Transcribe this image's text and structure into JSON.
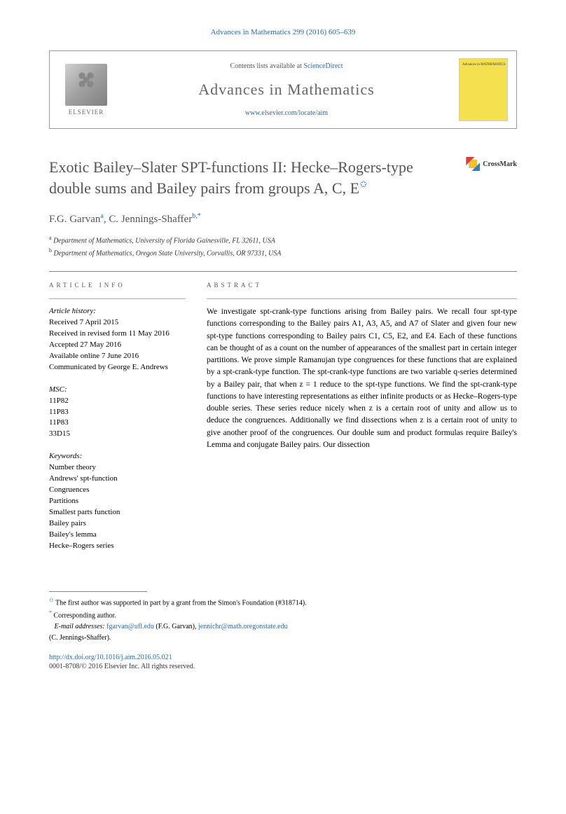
{
  "citation": "Advances in Mathematics 299 (2016) 605–639",
  "journal_box": {
    "publisher": "ELSEVIER",
    "contents_prefix": "Contents lists available at ",
    "contents_link": "ScienceDirect",
    "journal_name": "Advances in Mathematics",
    "journal_url": "www.elsevier.com/locate/aim",
    "cover_text": "Advances in\nMATHEMATICS"
  },
  "title": "Exotic Bailey–Slater SPT-functions II: Hecke–Rogers-type double sums and Bailey pairs from groups A, C, E",
  "crossmark_label": "CrossMark",
  "authors": [
    {
      "name": "F.G. Garvan",
      "sup": "a"
    },
    {
      "name": "C. Jennings-Shaffer",
      "sup": "b,*"
    }
  ],
  "affiliations": [
    {
      "sup": "a",
      "text": "Department of Mathematics, University of Florida Gainesville, FL 32611, USA"
    },
    {
      "sup": "b",
      "text": "Department of Mathematics, Oregon State University, Corvallis, OR 97331, USA"
    }
  ],
  "article_info": {
    "header": "ARTICLE INFO",
    "history_label": "Article history:",
    "history": [
      "Received 7 April 2015",
      "Received in revised form 11 May 2016",
      "Accepted 27 May 2016",
      "Available online 7 June 2016",
      "Communicated by George E. Andrews"
    ],
    "msc_label": "MSC:",
    "msc": [
      "11P82",
      "11P83",
      "11P83",
      "33D15"
    ],
    "keywords_label": "Keywords:",
    "keywords": [
      "Number theory",
      "Andrews' spt-function",
      "Congruences",
      "Partitions",
      "Smallest parts function",
      "Bailey pairs",
      "Bailey's lemma",
      "Hecke–Rogers series"
    ]
  },
  "abstract": {
    "header": "ABSTRACT",
    "text": "We investigate spt-crank-type functions arising from Bailey pairs. We recall four spt-type functions corresponding to the Bailey pairs A1, A3, A5, and A7 of Slater and given four new spt-type functions corresponding to Bailey pairs C1, C5, E2, and E4. Each of these functions can be thought of as a count on the number of appearances of the smallest part in certain integer partitions. We prove simple Ramanujan type congruences for these functions that are explained by a spt-crank-type function. The spt-crank-type functions are two variable q-series determined by a Bailey pair, that when z = 1 reduce to the spt-type functions. We find the spt-crank-type functions to have interesting representations as either infinite products or as Hecke–Rogers-type double series. These series reduce nicely when z is a certain root of unity and allow us to deduce the congruences. Additionally we find dissections when z is a certain root of unity to give another proof of the congruences. Our double sum and product formulas require Bailey's Lemma and conjugate Bailey pairs. Our dissection"
  },
  "footnotes": {
    "funding": "The first author was supported in part by a grant from the Simon's Foundation (#318714).",
    "corresponding": "Corresponding author.",
    "email_label": "E-mail addresses:",
    "emails": [
      {
        "addr": "fgarvan@ufl.edu",
        "who": "(F.G. Garvan)"
      },
      {
        "addr": "jennichr@math.oregonstate.edu",
        "who": "(C. Jennings-Shaffer)"
      }
    ]
  },
  "doi": "http://dx.doi.org/10.1016/j.aim.2016.05.021",
  "copyright": "0001-8708/© 2016 Elsevier Inc. All rights reserved.",
  "colors": {
    "link": "#2b68b0",
    "title_gray": "#555555",
    "cover_yellow": "#f5e050"
  }
}
